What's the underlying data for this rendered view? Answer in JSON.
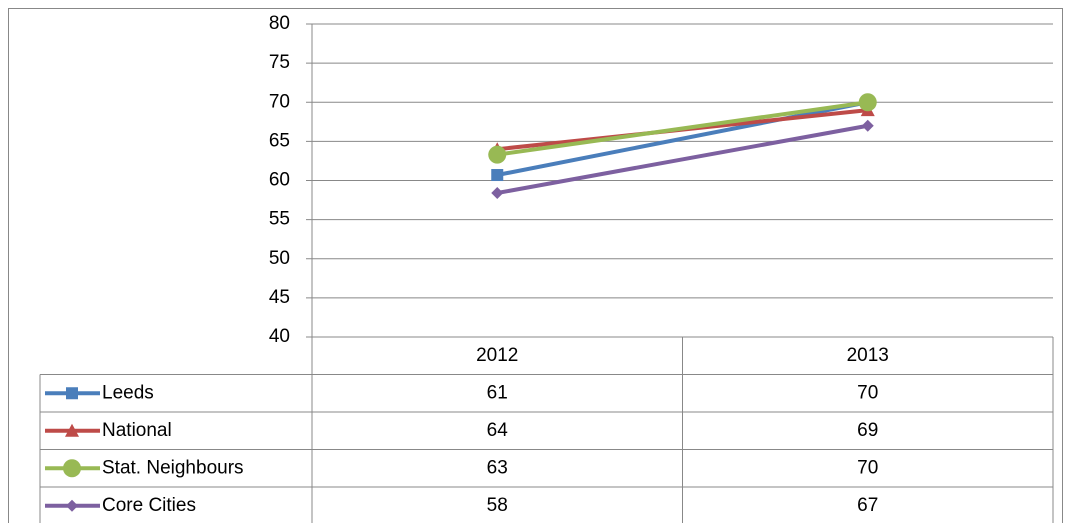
{
  "chart_data": {
    "type": "line",
    "categories": [
      "2012",
      "2013"
    ],
    "series": [
      {
        "name": "Leeds",
        "color": "#4a7ebb",
        "marker": "square",
        "values": [
          60.7,
          70
        ],
        "value_labels": [
          "61",
          "70"
        ]
      },
      {
        "name": "National",
        "color": "#be4b48",
        "marker": "triangle",
        "values": [
          64,
          69
        ],
        "value_labels": [
          "64",
          "69"
        ]
      },
      {
        "name": "Stat. Neighbours",
        "color": "#98b954",
        "marker": "circle",
        "values": [
          63.3,
          70
        ],
        "value_labels": [
          "63",
          "70"
        ]
      },
      {
        "name": "Core Cities",
        "color": "#7d60a0",
        "marker": "diamond",
        "values": [
          58.4,
          67
        ],
        "value_labels": [
          "58",
          "67"
        ]
      }
    ],
    "ylim": [
      40,
      80
    ],
    "yticks": [
      40,
      45,
      50,
      55,
      60,
      65,
      70,
      75,
      80
    ],
    "grid": true,
    "data_table": true
  }
}
